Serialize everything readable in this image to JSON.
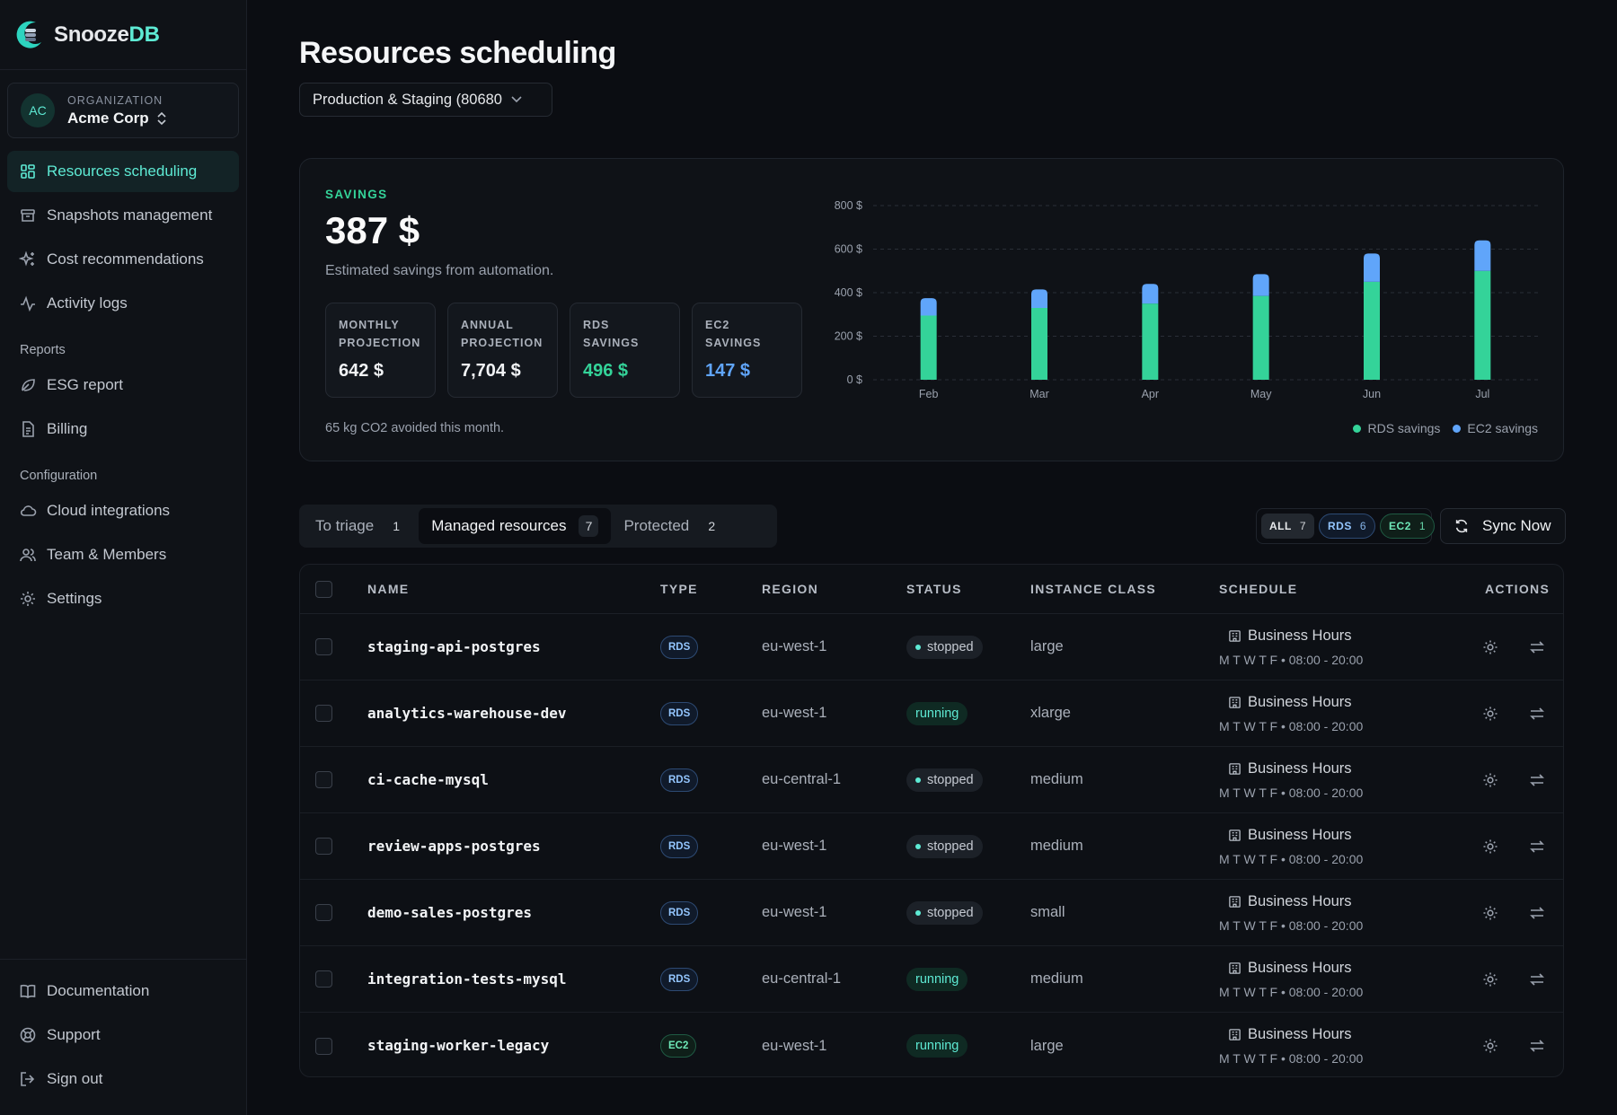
{
  "app": {
    "name_a": "Snooze",
    "name_b": "DB"
  },
  "org": {
    "initials": "AC",
    "label": "ORGANIZATION",
    "name": "Acme Corp"
  },
  "nav": {
    "primary": [
      {
        "label": "Resources scheduling",
        "icon": "grid-icon"
      },
      {
        "label": "Snapshots management",
        "icon": "archive-icon"
      },
      {
        "label": "Cost recommendations",
        "icon": "sparkles-icon"
      },
      {
        "label": "Activity logs",
        "icon": "activity-icon"
      }
    ],
    "reports_heading": "Reports",
    "reports": [
      {
        "label": "ESG report",
        "icon": "leaf-icon"
      },
      {
        "label": "Billing",
        "icon": "file-icon"
      }
    ],
    "config_heading": "Configuration",
    "config": [
      {
        "label": "Cloud integrations",
        "icon": "cloud-icon"
      },
      {
        "label": "Team & Members",
        "icon": "users-icon"
      },
      {
        "label": "Settings",
        "icon": "gear-icon"
      }
    ],
    "bottom": [
      {
        "label": "Documentation",
        "icon": "book-icon"
      },
      {
        "label": "Support",
        "icon": "lifebuoy-icon"
      },
      {
        "label": "Sign out",
        "icon": "sign-out-icon"
      }
    ]
  },
  "page": {
    "title": "Resources scheduling",
    "env_select": "Production & Staging (80680"
  },
  "savings": {
    "label": "SAVINGS",
    "total": "387 $",
    "subtitle": "Estimated savings from automation.",
    "tiles": [
      {
        "label": "MONTHLY\nPROJECTION",
        "value": "642 $"
      },
      {
        "label": "ANNUAL\nPROJECTION",
        "value": "7,704 $"
      },
      {
        "label": "RDS\nSAVINGS",
        "value": "496 $"
      },
      {
        "label": "EC2\nSAVINGS",
        "value": "147 $"
      }
    ],
    "co2": "65 kg CO2 avoided this month."
  },
  "chart_data": {
    "type": "bar",
    "stacked": true,
    "categories": [
      "Feb",
      "Mar",
      "Apr",
      "May",
      "Jun",
      "Jul"
    ],
    "series": [
      {
        "name": "RDS savings",
        "color": "#34d399",
        "values": [
          295,
          330,
          350,
          385,
          450,
          500
        ]
      },
      {
        "name": "EC2 savings",
        "color": "#60a5fa",
        "values": [
          80,
          85,
          90,
          100,
          130,
          140
        ]
      }
    ],
    "ylim": [
      0,
      800
    ],
    "yticks": [
      "0 $",
      "200 $",
      "400 $",
      "600 $",
      "800 $"
    ],
    "ytick_values": [
      0,
      200,
      400,
      600,
      800
    ],
    "grid": true,
    "legend": "bottom-right",
    "title": "",
    "xlabel": "",
    "ylabel": ""
  },
  "tabs": [
    {
      "label": "To triage",
      "count": "1"
    },
    {
      "label": "Managed resources",
      "count": "7"
    },
    {
      "label": "Protected",
      "count": "2"
    }
  ],
  "filters": [
    {
      "label": "ALL",
      "count": "7"
    },
    {
      "label": "RDS",
      "count": "6"
    },
    {
      "label": "EC2",
      "count": "1"
    }
  ],
  "sync_label": "Sync Now",
  "table": {
    "headers": [
      "NAME",
      "TYPE",
      "REGION",
      "STATUS",
      "INSTANCE CLASS",
      "SCHEDULE",
      "ACTIONS"
    ],
    "rows": [
      {
        "name": "staging-api-postgres",
        "type": "RDS",
        "region": "eu-west-1",
        "status": "stopped",
        "class": "large",
        "schedule": "Business Hours",
        "days": "M T W T F • 08:00 - 20:00"
      },
      {
        "name": "analytics-warehouse-dev",
        "type": "RDS",
        "region": "eu-west-1",
        "status": "running",
        "class": "xlarge",
        "schedule": "Business Hours",
        "days": "M T W T F • 08:00 - 20:00"
      },
      {
        "name": "ci-cache-mysql",
        "type": "RDS",
        "region": "eu-central-1",
        "status": "stopped",
        "class": "medium",
        "schedule": "Business Hours",
        "days": "M T W T F • 08:00 - 20:00"
      },
      {
        "name": "review-apps-postgres",
        "type": "RDS",
        "region": "eu-west-1",
        "status": "stopped",
        "class": "medium",
        "schedule": "Business Hours",
        "days": "M T W T F • 08:00 - 20:00"
      },
      {
        "name": "demo-sales-postgres",
        "type": "RDS",
        "region": "eu-west-1",
        "status": "stopped",
        "class": "small",
        "schedule": "Business Hours",
        "days": "M T W T F • 08:00 - 20:00"
      },
      {
        "name": "integration-tests-mysql",
        "type": "RDS",
        "region": "eu-central-1",
        "status": "running",
        "class": "medium",
        "schedule": "Business Hours",
        "days": "M T W T F • 08:00 - 20:00"
      },
      {
        "name": "staging-worker-legacy",
        "type": "EC2",
        "region": "eu-west-1",
        "status": "running",
        "class": "large",
        "schedule": "Business Hours",
        "days": "M T W T F • 08:00 - 20:00"
      }
    ]
  },
  "colors": {
    "accent": "#5eead4",
    "rds": "#34d399",
    "ec2": "#60a5fa",
    "background": "#0b0d12"
  }
}
